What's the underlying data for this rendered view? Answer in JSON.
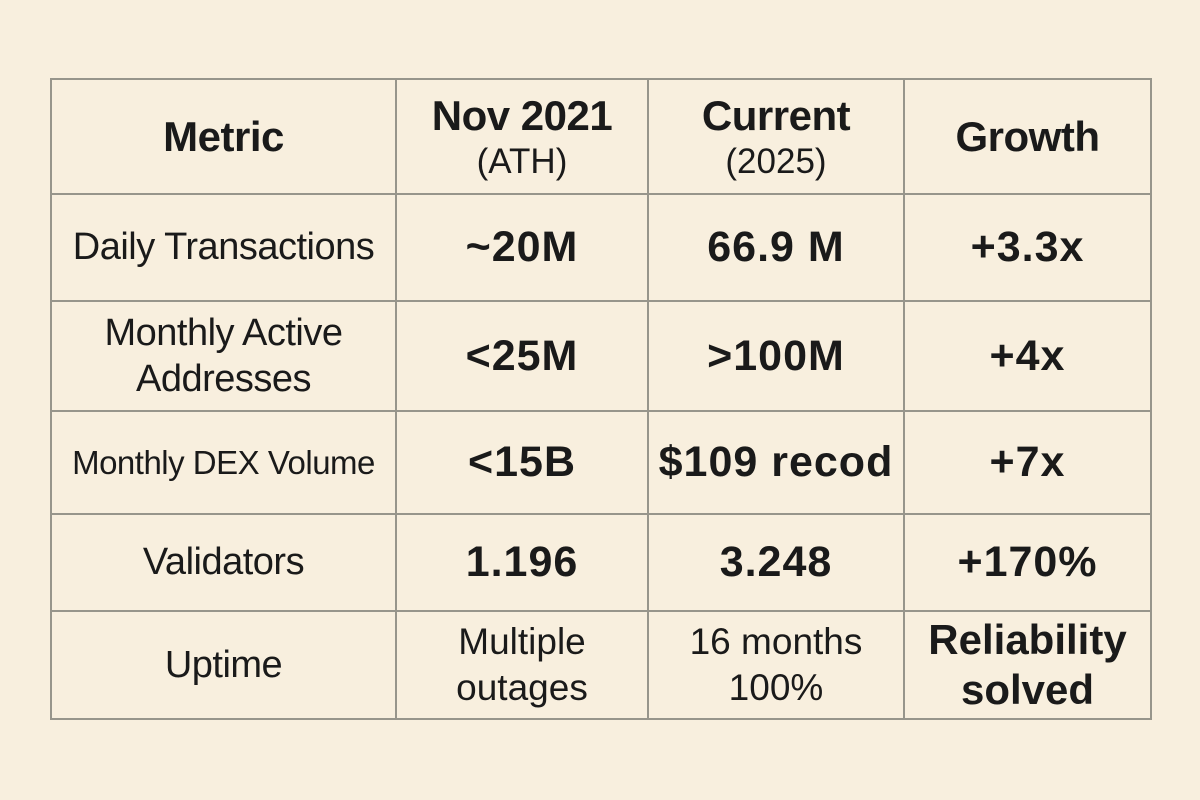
{
  "colors": {
    "background": "#f8efde",
    "border": "#97958b",
    "text": "#1a1a1a"
  },
  "table": {
    "columns": [
      {
        "title": "Metric",
        "subtitle": ""
      },
      {
        "title": "Nov 2021",
        "subtitle": "(ATH)"
      },
      {
        "title": "Current",
        "subtitle": "(2025)"
      },
      {
        "title": "Growth",
        "subtitle": ""
      }
    ],
    "rows": [
      {
        "metric": "Daily Transactions",
        "ath": "~20M",
        "current": "66.9 M",
        "growth": "+3.3x"
      },
      {
        "metric": "Monthly Active Addresses",
        "ath": "<25M",
        "current": ">100M",
        "growth": "+4x"
      },
      {
        "metric": "Monthly DEX Volume",
        "ath": "<15B",
        "current": "$109 recod",
        "growth": "+7x"
      },
      {
        "metric": "Validators",
        "ath": "1.196",
        "current": "3.248",
        "growth": "+170%"
      },
      {
        "metric": "Uptime",
        "ath": "Multiple outages",
        "current": "16 months 100%",
        "growth": "Reliability solved"
      }
    ]
  },
  "chart_data": {
    "type": "table",
    "title": "",
    "columns": [
      "Metric",
      "Nov 2021 (ATH)",
      "Current (2025)",
      "Growth"
    ],
    "rows": [
      [
        "Daily Transactions",
        "~20M",
        "66.9 M",
        "+3.3x"
      ],
      [
        "Monthly Active Addresses",
        "<25M",
        ">100M",
        "+4x"
      ],
      [
        "Monthly DEX Volume",
        "<15B",
        "$109 recod",
        "+7x"
      ],
      [
        "Validators",
        "1.196",
        "3.248",
        "+170%"
      ],
      [
        "Uptime",
        "Multiple outages",
        "16 months 100%",
        "Reliability solved"
      ]
    ]
  }
}
